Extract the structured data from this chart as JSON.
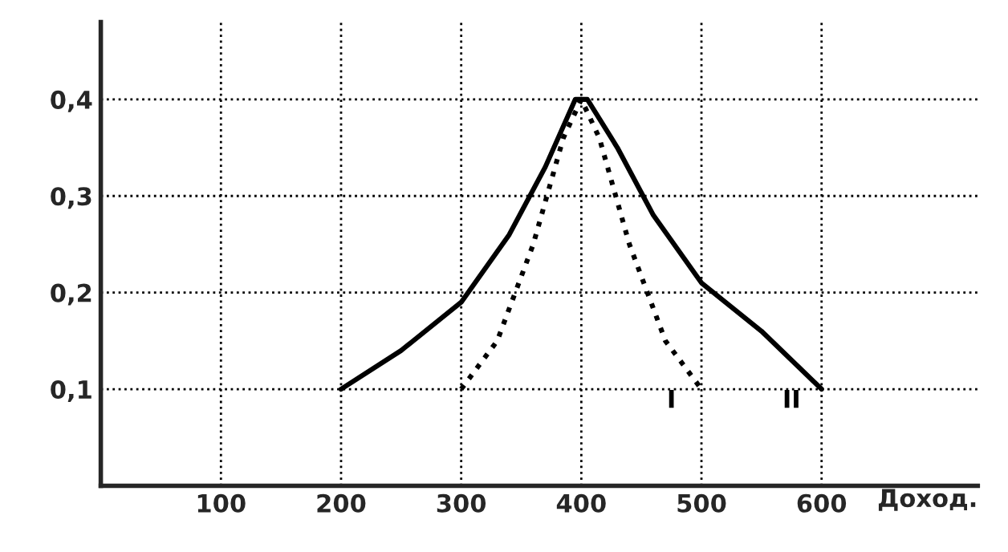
{
  "chart_data": {
    "type": "line",
    "xlabel": "Доход.",
    "series": [
      {
        "name": "I",
        "color": "#000000",
        "line_style": "dotted",
        "x": [
          300,
          330,
          360,
          385,
          400,
          415,
          440,
          470,
          500
        ],
        "values": [
          0.1,
          0.15,
          0.25,
          0.36,
          0.4,
          0.36,
          0.25,
          0.15,
          0.1
        ]
      },
      {
        "name": "II",
        "color": "#000000",
        "line_style": "solid",
        "x": [
          200,
          250,
          300,
          340,
          370,
          395,
          405,
          430,
          460,
          500,
          550,
          600
        ],
        "values": [
          0.1,
          0.14,
          0.19,
          0.26,
          0.33,
          0.4,
          0.4,
          0.35,
          0.28,
          0.21,
          0.16,
          0.1
        ]
      }
    ],
    "xlim": [
      0,
      730
    ],
    "ylim": [
      0,
      0.48
    ],
    "xticks": [
      100,
      200,
      300,
      400,
      500,
      600
    ],
    "yticks": [
      {
        "value": 0.1,
        "label": "0,1"
      },
      {
        "value": 0.2,
        "label": "0,2"
      },
      {
        "value": 0.3,
        "label": "0,3"
      },
      {
        "value": 0.4,
        "label": "0,4"
      }
    ],
    "grid": true,
    "legend": false
  }
}
